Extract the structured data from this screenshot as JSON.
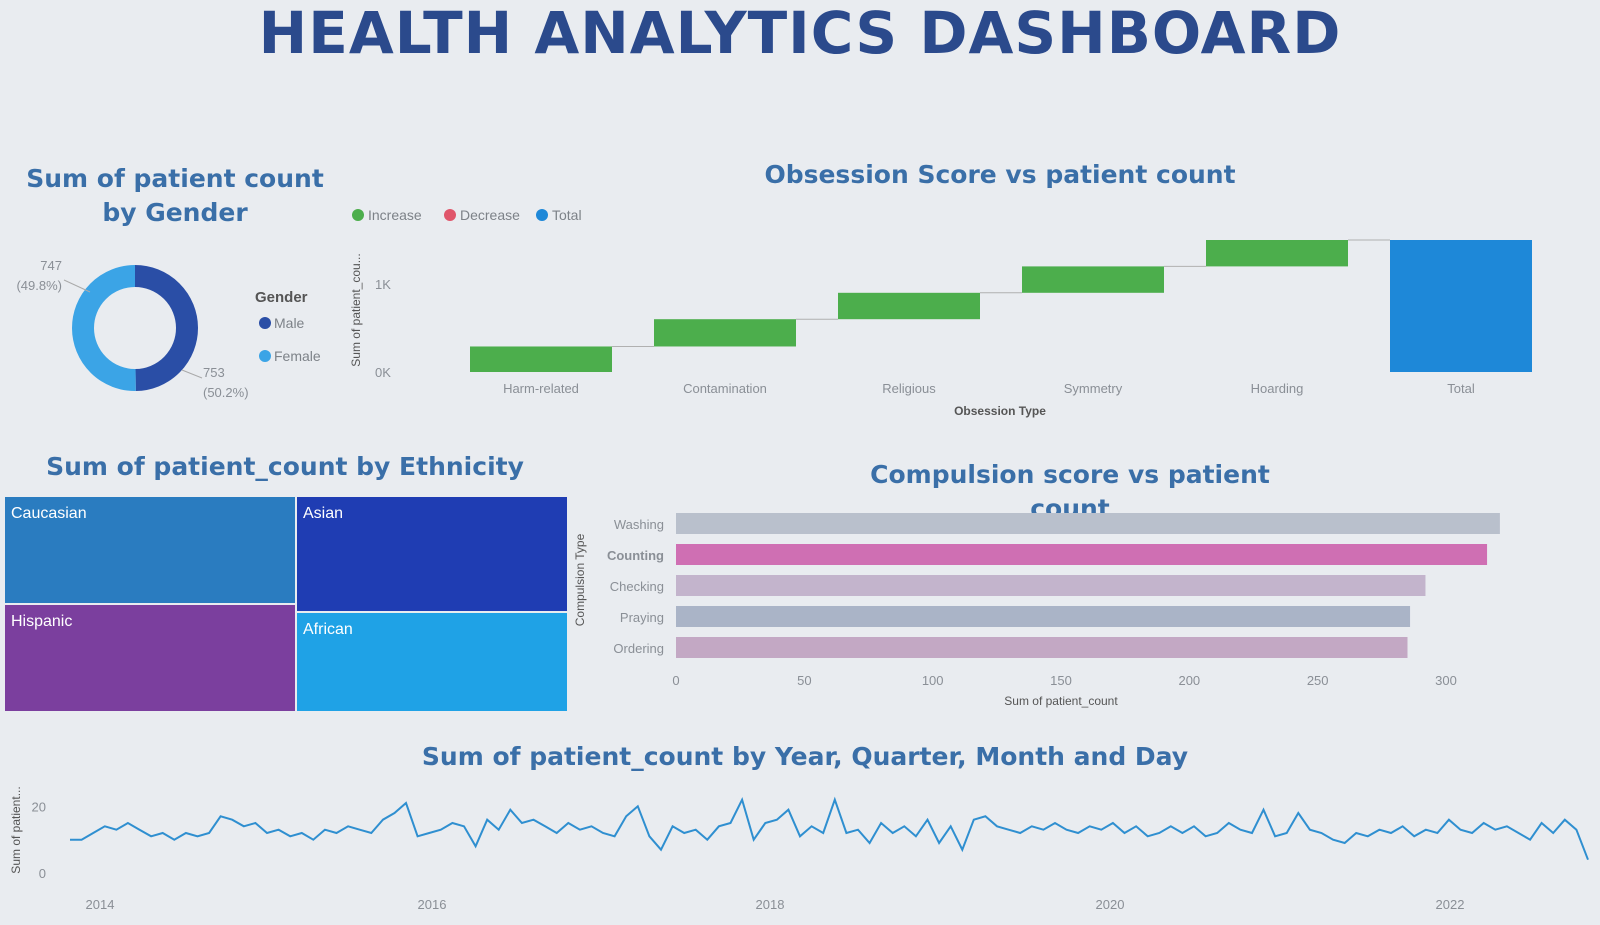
{
  "dashboard": {
    "title": "HEALTH ANALYTICS DASHBOARD"
  },
  "chart_data": [
    {
      "id": "gender",
      "type": "pie",
      "title": "Sum of patient count by Gender",
      "legend_title": "Gender",
      "slices": [
        {
          "label": "Male",
          "value": 747,
          "pct_label": "(49.8%)",
          "color": "#2a4ea6"
        },
        {
          "label": "Female",
          "value": 753,
          "pct_label": "(50.2%)",
          "color": "#3ba4e6"
        }
      ]
    },
    {
      "id": "obsession",
      "type": "waterfall",
      "title": "Obsession Score vs patient count",
      "xlabel": "Obsession Type",
      "ylabel": "Sum of patient_cou...",
      "legend": [
        {
          "label": "Increase",
          "color": "#4cae4c"
        },
        {
          "label": "Decrease",
          "color": "#e0566b"
        },
        {
          "label": "Total",
          "color": "#1e88d8"
        }
      ],
      "yticks": [
        "0K",
        "1K"
      ],
      "ylim": [
        0,
        1500
      ],
      "categories": [
        "Harm-related",
        "Contamination",
        "Religious",
        "Symmetry",
        "Hoarding",
        "Total"
      ],
      "values": [
        290,
        310,
        300,
        300,
        300,
        1500
      ]
    },
    {
      "id": "ethnicity",
      "type": "treemap",
      "title": "Sum of patient_count by Ethnicity",
      "items": [
        {
          "label": "Caucasian",
          "color": "#2a7cc0"
        },
        {
          "label": "Asian",
          "color": "#1f3db3"
        },
        {
          "label": "Hispanic",
          "color": "#7b3f9e"
        },
        {
          "label": "African",
          "color": "#1fa2e6"
        }
      ]
    },
    {
      "id": "compulsion",
      "type": "bar",
      "orientation": "horizontal",
      "title": "Compulsion score vs patient count",
      "xlabel": "Sum of patient_count",
      "ylabel": "Compulsion Type",
      "categories": [
        "Washing",
        "Counting",
        "Checking",
        "Praying",
        "Ordering"
      ],
      "highlighted": "Counting",
      "values": [
        321,
        316,
        292,
        286,
        285
      ],
      "xlim": [
        0,
        320
      ],
      "xticks": [
        0,
        50,
        100,
        150,
        200,
        250,
        300
      ],
      "colors": [
        "#b9c0cc",
        "#cf6fb3",
        "#c3b4cc",
        "#aab4c7",
        "#c3a8c4"
      ]
    },
    {
      "id": "timeline",
      "type": "line",
      "title": "Sum of patient_count by Year, Quarter, Month and Day",
      "ylabel": "Sum of patient...",
      "yticks": [
        0,
        20
      ],
      "ylim": [
        0,
        24
      ],
      "xticks": [
        "2014",
        "2016",
        "2018",
        "2020",
        "2022"
      ],
      "color": "#2f8fd0",
      "values": [
        10,
        10,
        12,
        14,
        13,
        15,
        13,
        11,
        12,
        10,
        12,
        11,
        12,
        17,
        16,
        14,
        15,
        12,
        13,
        11,
        12,
        10,
        13,
        12,
        14,
        13,
        12,
        16,
        18,
        21,
        11,
        12,
        13,
        15,
        14,
        8,
        16,
        13,
        19,
        15,
        16,
        14,
        12,
        15,
        13,
        14,
        12,
        11,
        17,
        20,
        11,
        7,
        14,
        12,
        13,
        10,
        14,
        15,
        22,
        10,
        15,
        16,
        19,
        11,
        14,
        12,
        22,
        12,
        13,
        9,
        15,
        12,
        14,
        11,
        16,
        9,
        14,
        7,
        16,
        17,
        14,
        13,
        12,
        14,
        13,
        15,
        13,
        12,
        14,
        13,
        15,
        12,
        14,
        11,
        12,
        14,
        12,
        14,
        11,
        12,
        15,
        13,
        12,
        19,
        11,
        12,
        18,
        13,
        12,
        10,
        9,
        12,
        11,
        13,
        12,
        14,
        11,
        13,
        12,
        16,
        13,
        12,
        15,
        13,
        14,
        12,
        10,
        15,
        12,
        16,
        13,
        4
      ]
    }
  ]
}
